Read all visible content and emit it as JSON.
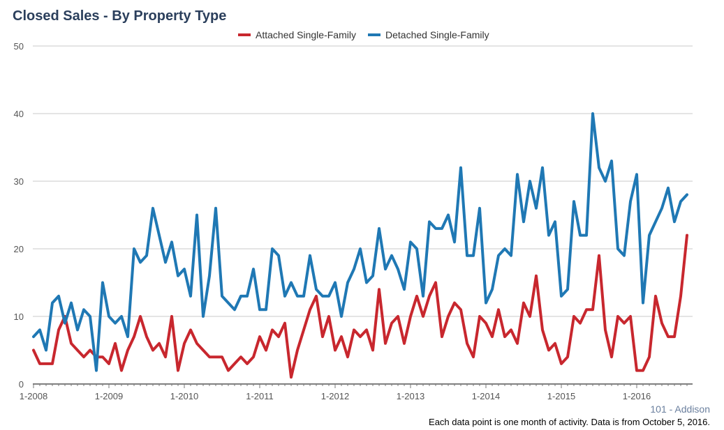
{
  "title": "Closed Sales - By Property Type",
  "region_label": "101 - Addison",
  "footnote": "Each data point is one month of activity. Data is from October 5, 2016.",
  "colors": {
    "attached": "#c8272e",
    "detached": "#1f78b4",
    "grid": "#c8c8c8"
  },
  "chart_data": {
    "type": "line",
    "title": "Closed Sales - By Property Type",
    "xlabel": "",
    "ylabel": "",
    "ylim": [
      0,
      50
    ],
    "yticks": [
      0,
      10,
      20,
      30,
      40,
      50
    ],
    "xtick_labels": [
      "1-2008",
      "1-2009",
      "1-2010",
      "1-2011",
      "1-2012",
      "1-2013",
      "1-2014",
      "1-2015",
      "1-2016"
    ],
    "x_start": "2008-01",
    "x_end": "2016-09",
    "grid": true,
    "legend": "top-center",
    "series": [
      {
        "name": "Attached Single-Family",
        "color": "#c8272e",
        "values": [
          5,
          3,
          3,
          3,
          8,
          10,
          6,
          5,
          4,
          5,
          4,
          4,
          3,
          6,
          2,
          5,
          7,
          10,
          7,
          5,
          6,
          4,
          10,
          2,
          6,
          8,
          6,
          5,
          4,
          4,
          4,
          2,
          3,
          4,
          3,
          4,
          7,
          5,
          8,
          7,
          9,
          1,
          5,
          8,
          11,
          13,
          7,
          10,
          5,
          7,
          4,
          8,
          7,
          8,
          5,
          14,
          6,
          9,
          10,
          6,
          10,
          13,
          10,
          13,
          15,
          7,
          10,
          12,
          11,
          6,
          4,
          10,
          9,
          7,
          11,
          7,
          8,
          6,
          12,
          10,
          16,
          8,
          5,
          6,
          3,
          4,
          10,
          9,
          11,
          11,
          19,
          8,
          4,
          10,
          9,
          10,
          2,
          2,
          4,
          13,
          9,
          7,
          7,
          13,
          22
        ]
      },
      {
        "name": "Detached Single-Family",
        "color": "#1f78b4",
        "values": [
          7,
          8,
          5,
          12,
          13,
          9,
          12,
          8,
          11,
          10,
          2,
          15,
          10,
          9,
          10,
          7,
          20,
          18,
          19,
          26,
          22,
          18,
          21,
          16,
          17,
          13,
          25,
          10,
          16,
          26,
          13,
          12,
          11,
          13,
          13,
          17,
          11,
          11,
          20,
          19,
          13,
          15,
          13,
          13,
          19,
          14,
          13,
          13,
          15,
          10,
          15,
          17,
          20,
          15,
          16,
          23,
          17,
          19,
          17,
          14,
          21,
          20,
          13,
          24,
          23,
          23,
          25,
          21,
          32,
          19,
          19,
          26,
          12,
          14,
          19,
          20,
          19,
          31,
          24,
          30,
          26,
          32,
          22,
          24,
          13,
          14,
          27,
          22,
          22,
          40,
          32,
          30,
          33,
          20,
          19,
          27,
          31,
          12,
          22,
          24,
          26,
          29,
          24,
          27,
          28
        ]
      }
    ]
  }
}
